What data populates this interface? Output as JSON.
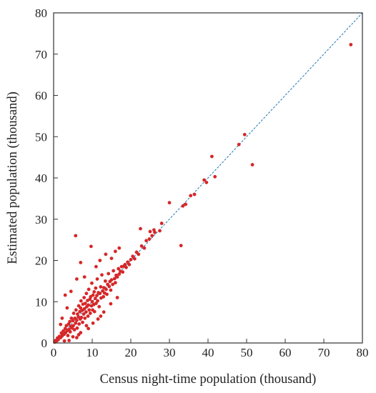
{
  "chart_data": {
    "type": "scatter",
    "title": "",
    "xlabel": "Census night-time population (thousand)",
    "ylabel": "Estimated population (thousand)",
    "xlim": [
      0,
      80
    ],
    "ylim": [
      0,
      80
    ],
    "xticks": [
      0,
      10,
      20,
      30,
      40,
      50,
      60,
      70,
      80
    ],
    "yticks": [
      0,
      10,
      20,
      30,
      40,
      50,
      60,
      70,
      80
    ],
    "grid": false,
    "legend": "none",
    "reference_line": {
      "style": "dashed",
      "x": [
        0,
        80
      ],
      "y": [
        0,
        80
      ],
      "color": "#1f77b4"
    },
    "series": [
      {
        "marker_color": "#d62728",
        "points": [
          [
            0.3,
            0.2
          ],
          [
            0.5,
            0.6
          ],
          [
            0.8,
            0.5
          ],
          [
            1.0,
            1.2
          ],
          [
            1.2,
            0.8
          ],
          [
            1.5,
            1.6
          ],
          [
            1.8,
            1.3
          ],
          [
            2.0,
            2.4
          ],
          [
            2.2,
            1.7
          ],
          [
            2.5,
            2.9
          ],
          [
            2.7,
            2.1
          ],
          [
            3.0,
            3.5
          ],
          [
            3.1,
            2.5
          ],
          [
            3.3,
            4.2
          ],
          [
            3.5,
            3.0
          ],
          [
            3.7,
            1.8
          ],
          [
            3.9,
            4.6
          ],
          [
            4.0,
            3.3
          ],
          [
            4.2,
            5.2
          ],
          [
            4.3,
            2.7
          ],
          [
            4.5,
            4.0
          ],
          [
            4.6,
            6.0
          ],
          [
            4.8,
            3.6
          ],
          [
            5.0,
            5.4
          ],
          [
            5.1,
            4.2
          ],
          [
            5.2,
            7.2
          ],
          [
            5.4,
            3.2
          ],
          [
            5.5,
            6.0
          ],
          [
            5.7,
            4.8
          ],
          [
            5.8,
            8.0
          ],
          [
            6.0,
            5.5
          ],
          [
            6.1,
            3.6
          ],
          [
            6.2,
            7.0
          ],
          [
            6.4,
            6.3
          ],
          [
            6.5,
            9.0
          ],
          [
            6.6,
            4.6
          ],
          [
            6.8,
            7.6
          ],
          [
            6.9,
            5.8
          ],
          [
            7.0,
            8.5
          ],
          [
            7.1,
            10.2
          ],
          [
            7.2,
            6.2
          ],
          [
            7.4,
            7.9
          ],
          [
            7.5,
            5.0
          ],
          [
            7.6,
            9.4
          ],
          [
            7.8,
            7.0
          ],
          [
            7.9,
            11.0
          ],
          [
            8.0,
            8.3
          ],
          [
            8.1,
            6.0
          ],
          [
            8.2,
            9.6
          ],
          [
            8.4,
            7.5
          ],
          [
            8.5,
            12.0
          ],
          [
            8.6,
            8.8
          ],
          [
            8.8,
            10.3
          ],
          [
            8.9,
            6.5
          ],
          [
            9.0,
            9.2
          ],
          [
            9.1,
            13.0
          ],
          [
            9.2,
            8.0
          ],
          [
            9.4,
            10.6
          ],
          [
            9.5,
            7.2
          ],
          [
            9.6,
            11.2
          ],
          [
            9.8,
            9.0
          ],
          [
            9.9,
            14.5
          ],
          [
            10.0,
            10.0
          ],
          [
            10.1,
            8.0
          ],
          [
            10.2,
            11.6
          ],
          [
            10.4,
            9.3
          ],
          [
            10.5,
            12.4
          ],
          [
            10.6,
            7.6
          ],
          [
            10.8,
            10.8
          ],
          [
            10.9,
            13.3
          ],
          [
            11.0,
            9.6
          ],
          [
            11.2,
            11.5
          ],
          [
            11.3,
            15.5
          ],
          [
            11.4,
            10.2
          ],
          [
            11.6,
            12.2
          ],
          [
            11.8,
            8.8
          ],
          [
            12.0,
            12.0
          ],
          [
            12.2,
            13.6
          ],
          [
            12.3,
            10.9
          ],
          [
            12.5,
            16.5
          ],
          [
            12.7,
            12.6
          ],
          [
            12.9,
            11.2
          ],
          [
            13.0,
            13.4
          ],
          [
            13.2,
            12.1
          ],
          [
            13.4,
            15.0
          ],
          [
            13.6,
            13.0
          ],
          [
            13.8,
            11.8
          ],
          [
            14.0,
            14.2
          ],
          [
            14.2,
            16.8
          ],
          [
            14.4,
            13.7
          ],
          [
            14.6,
            14.9
          ],
          [
            14.8,
            12.8
          ],
          [
            15.0,
            15.3
          ],
          [
            15.3,
            14.2
          ],
          [
            15.5,
            17.5
          ],
          [
            15.8,
            15.6
          ],
          [
            16.0,
            14.6
          ],
          [
            16.2,
            16.4
          ],
          [
            16.5,
            16.0
          ],
          [
            16.8,
            18.0
          ],
          [
            17.0,
            16.7
          ],
          [
            17.3,
            17.4
          ],
          [
            17.6,
            18.5
          ],
          [
            17.9,
            17.2
          ],
          [
            18.2,
            18.6
          ],
          [
            18.5,
            19.0
          ],
          [
            18.8,
            18.3
          ],
          [
            19.2,
            19.6
          ],
          [
            19.6,
            19.0
          ],
          [
            20.0,
            20.2
          ],
          [
            20.5,
            21.0
          ],
          [
            21.0,
            20.4
          ],
          [
            21.5,
            22.0
          ],
          [
            22.0,
            21.5
          ],
          [
            22.8,
            23.5
          ],
          [
            23.5,
            23.0
          ],
          [
            24.0,
            24.8
          ],
          [
            24.8,
            25.2
          ],
          [
            25.5,
            26.0
          ],
          [
            26.2,
            26.8
          ],
          [
            25.0,
            27.0
          ],
          [
            26.0,
            27.4
          ],
          [
            27.5,
            27.2
          ],
          [
            28.0,
            29.0
          ],
          [
            5.7,
            26.0
          ],
          [
            9.7,
            23.4
          ],
          [
            22.5,
            27.7
          ],
          [
            7.0,
            19.5
          ],
          [
            13.5,
            21.5
          ],
          [
            17.0,
            23.0
          ],
          [
            11.0,
            18.5
          ],
          [
            12.0,
            20.0
          ],
          [
            16.0,
            22.2
          ],
          [
            15.0,
            20.5
          ],
          [
            3.0,
            11.6
          ],
          [
            4.5,
            12.5
          ],
          [
            6.0,
            15.5
          ],
          [
            8.0,
            16.0
          ],
          [
            3.5,
            8.5
          ],
          [
            2.2,
            6.0
          ],
          [
            1.8,
            4.5
          ],
          [
            5.0,
            1.5
          ],
          [
            7.0,
            2.5
          ],
          [
            9.0,
            3.5
          ],
          [
            11.5,
            5.8
          ],
          [
            8.5,
            4.2
          ],
          [
            13.0,
            7.5
          ],
          [
            6.5,
            2.0
          ],
          [
            10.2,
            4.8
          ],
          [
            12.2,
            6.5
          ],
          [
            14.8,
            9.5
          ],
          [
            16.5,
            11.0
          ],
          [
            4.0,
            0.6
          ],
          [
            6.0,
            1.3
          ],
          [
            2.8,
            0.5
          ],
          [
            30.0,
            34.0
          ],
          [
            33.0,
            23.6
          ],
          [
            33.5,
            33.2
          ],
          [
            34.2,
            33.6
          ],
          [
            35.5,
            35.7
          ],
          [
            36.5,
            36.0
          ],
          [
            39.0,
            39.5
          ],
          [
            39.6,
            38.9
          ],
          [
            41.0,
            45.2
          ],
          [
            41.8,
            40.3
          ],
          [
            48.0,
            48.1
          ],
          [
            49.5,
            50.5
          ],
          [
            51.5,
            43.2
          ],
          [
            77.0,
            72.3
          ]
        ]
      }
    ]
  }
}
